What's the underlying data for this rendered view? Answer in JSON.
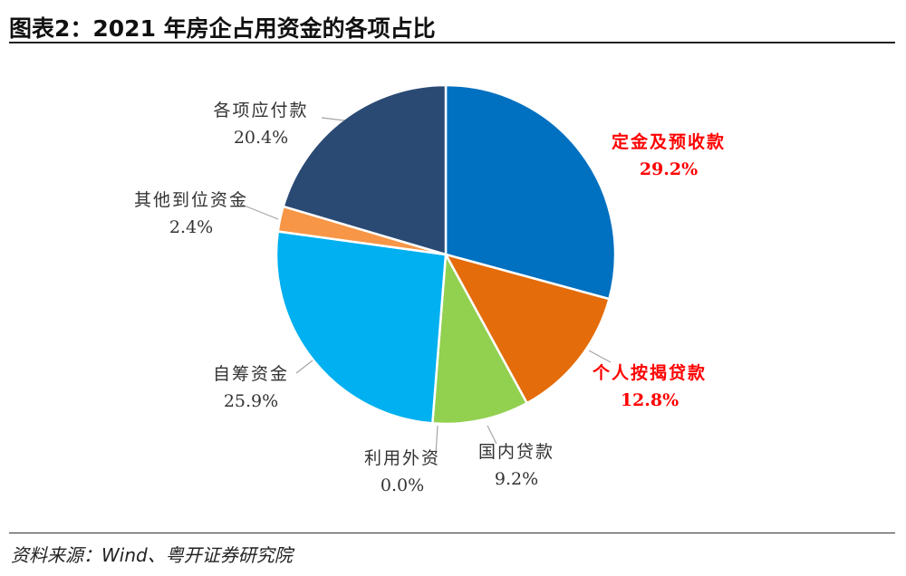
{
  "header": {
    "title": "图表2：2021 年房企占用资金的各项占比"
  },
  "footer": {
    "source": "资料来源：Wind、粤开证券研究院"
  },
  "chart_data": {
    "type": "pie",
    "slices": [
      {
        "name": "定金及预收款",
        "label": "29.2%",
        "value": 29.2,
        "color": "#0070c0",
        "highlight": true
      },
      {
        "name": "个人按揭贷款",
        "label": "12.8%",
        "value": 12.8,
        "color": "#e46c0a",
        "highlight": true
      },
      {
        "name": "国内贷款",
        "label": "9.2%",
        "value": 9.2,
        "color": "#92d050",
        "highlight": false
      },
      {
        "name": "利用外资",
        "label": "0.0%",
        "value": 0.0,
        "color": "#7f7f7f",
        "highlight": false
      },
      {
        "name": "自筹资金",
        "label": "25.9%",
        "value": 25.9,
        "color": "#00b0f0",
        "highlight": false
      },
      {
        "name": "其他到位资金",
        "label": "2.4%",
        "value": 2.4,
        "color": "#f79646",
        "highlight": false
      },
      {
        "name": "各项应付款",
        "label": "20.4%",
        "value": 20.4,
        "color": "#2a4a74",
        "highlight": false
      }
    ]
  }
}
